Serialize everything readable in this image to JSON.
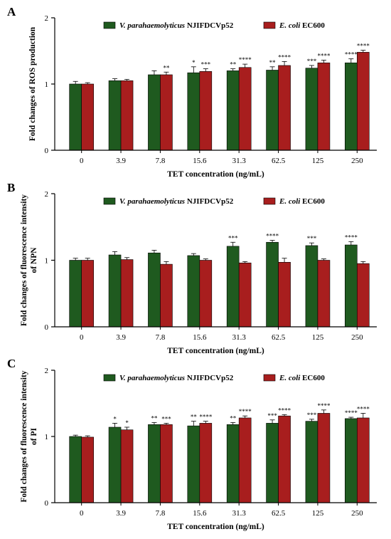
{
  "chart_data": [
    {
      "type": "bar",
      "panel_label": "A",
      "ylabel": "Fold changes of ROS production",
      "xlabel": "TET concentration (ng/mL)",
      "categories": [
        "0",
        "3.9",
        "7.8",
        "15.6",
        "31.3",
        "62.5",
        "125",
        "250"
      ],
      "ylim": [
        0,
        2
      ],
      "yticks": [
        "0",
        "1",
        "2"
      ],
      "series": [
        {
          "name": "V. parahaemolyticus NJIFDCVp52",
          "color": "#1f5a1f",
          "values": [
            1.0,
            1.05,
            1.14,
            1.17,
            1.2,
            1.21,
            1.24,
            1.32
          ],
          "errors": [
            0.04,
            0.03,
            0.06,
            0.09,
            0.03,
            0.05,
            0.04,
            0.06
          ],
          "significance": [
            "",
            "",
            "",
            "*",
            "**",
            "**",
            "***",
            "****"
          ]
        },
        {
          "name": "E. coli EC600",
          "color": "#a81e1e",
          "values": [
            1.0,
            1.05,
            1.14,
            1.19,
            1.25,
            1.28,
            1.32,
            1.48
          ],
          "errors": [
            0.02,
            0.02,
            0.04,
            0.04,
            0.05,
            0.06,
            0.04,
            0.03
          ],
          "significance": [
            "",
            "",
            "**",
            "***",
            "****",
            "****",
            "****",
            "****"
          ]
        }
      ]
    },
    {
      "type": "bar",
      "panel_label": "B",
      "ylabel": "Fold changes of fluorescence intensity of NPN",
      "ylabel_lines": [
        "Fold changes of fluorescence intensity",
        "of NPN"
      ],
      "xlabel": "TET concentration (ng/mL)",
      "categories": [
        "0",
        "3.9",
        "7.8",
        "15.6",
        "31.3",
        "62.5",
        "125",
        "250"
      ],
      "ylim": [
        0,
        2
      ],
      "yticks": [
        "0",
        "1",
        "2"
      ],
      "series": [
        {
          "name": "V. parahaemolyticus NJIFDCVp52",
          "color": "#1f5a1f",
          "values": [
            1.0,
            1.08,
            1.11,
            1.07,
            1.21,
            1.27,
            1.22,
            1.23
          ],
          "errors": [
            0.03,
            0.05,
            0.04,
            0.03,
            0.06,
            0.03,
            0.04,
            0.05
          ],
          "significance": [
            "",
            "",
            "",
            "",
            "***",
            "****",
            "***",
            "****"
          ]
        },
        {
          "name": "E. coli EC600",
          "color": "#a81e1e",
          "values": [
            1.0,
            1.01,
            0.94,
            1.0,
            0.96,
            0.97,
            1.0,
            0.95
          ],
          "errors": [
            0.03,
            0.03,
            0.04,
            0.02,
            0.02,
            0.06,
            0.02,
            0.03
          ],
          "significance": [
            "",
            "",
            "",
            "",
            "",
            "",
            "",
            ""
          ]
        }
      ]
    },
    {
      "type": "bar",
      "panel_label": "C",
      "ylabel": "Fold changes of fluorescence intensity of PI",
      "ylabel_lines": [
        "Fold changes of fluorescence intensity",
        "of PI"
      ],
      "xlabel": "TET concentration (ng/mL)",
      "categories": [
        "0",
        "3.9",
        "7.8",
        "15.6",
        "31.3",
        "62.5",
        "125",
        "250"
      ],
      "ylim": [
        0,
        2
      ],
      "yticks": [
        "0",
        "1",
        "2"
      ],
      "series": [
        {
          "name": "V. parahaemolyticus NJIFDCVp52",
          "color": "#1f5a1f",
          "values": [
            1.0,
            1.14,
            1.18,
            1.16,
            1.18,
            1.2,
            1.23,
            1.27
          ],
          "errors": [
            0.02,
            0.06,
            0.03,
            0.07,
            0.03,
            0.05,
            0.03,
            0.02
          ],
          "significance": [
            "",
            "*",
            "**",
            "**",
            "**",
            "***",
            "***",
            "****"
          ]
        },
        {
          "name": "E. coli EC600",
          "color": "#a81e1e",
          "values": [
            0.99,
            1.1,
            1.18,
            1.2,
            1.28,
            1.31,
            1.35,
            1.28
          ],
          "errors": [
            0.02,
            0.04,
            0.02,
            0.03,
            0.03,
            0.02,
            0.05,
            0.07
          ],
          "significance": [
            "",
            "*",
            "***",
            "****",
            "****",
            "****",
            "****",
            "****"
          ]
        }
      ]
    }
  ]
}
